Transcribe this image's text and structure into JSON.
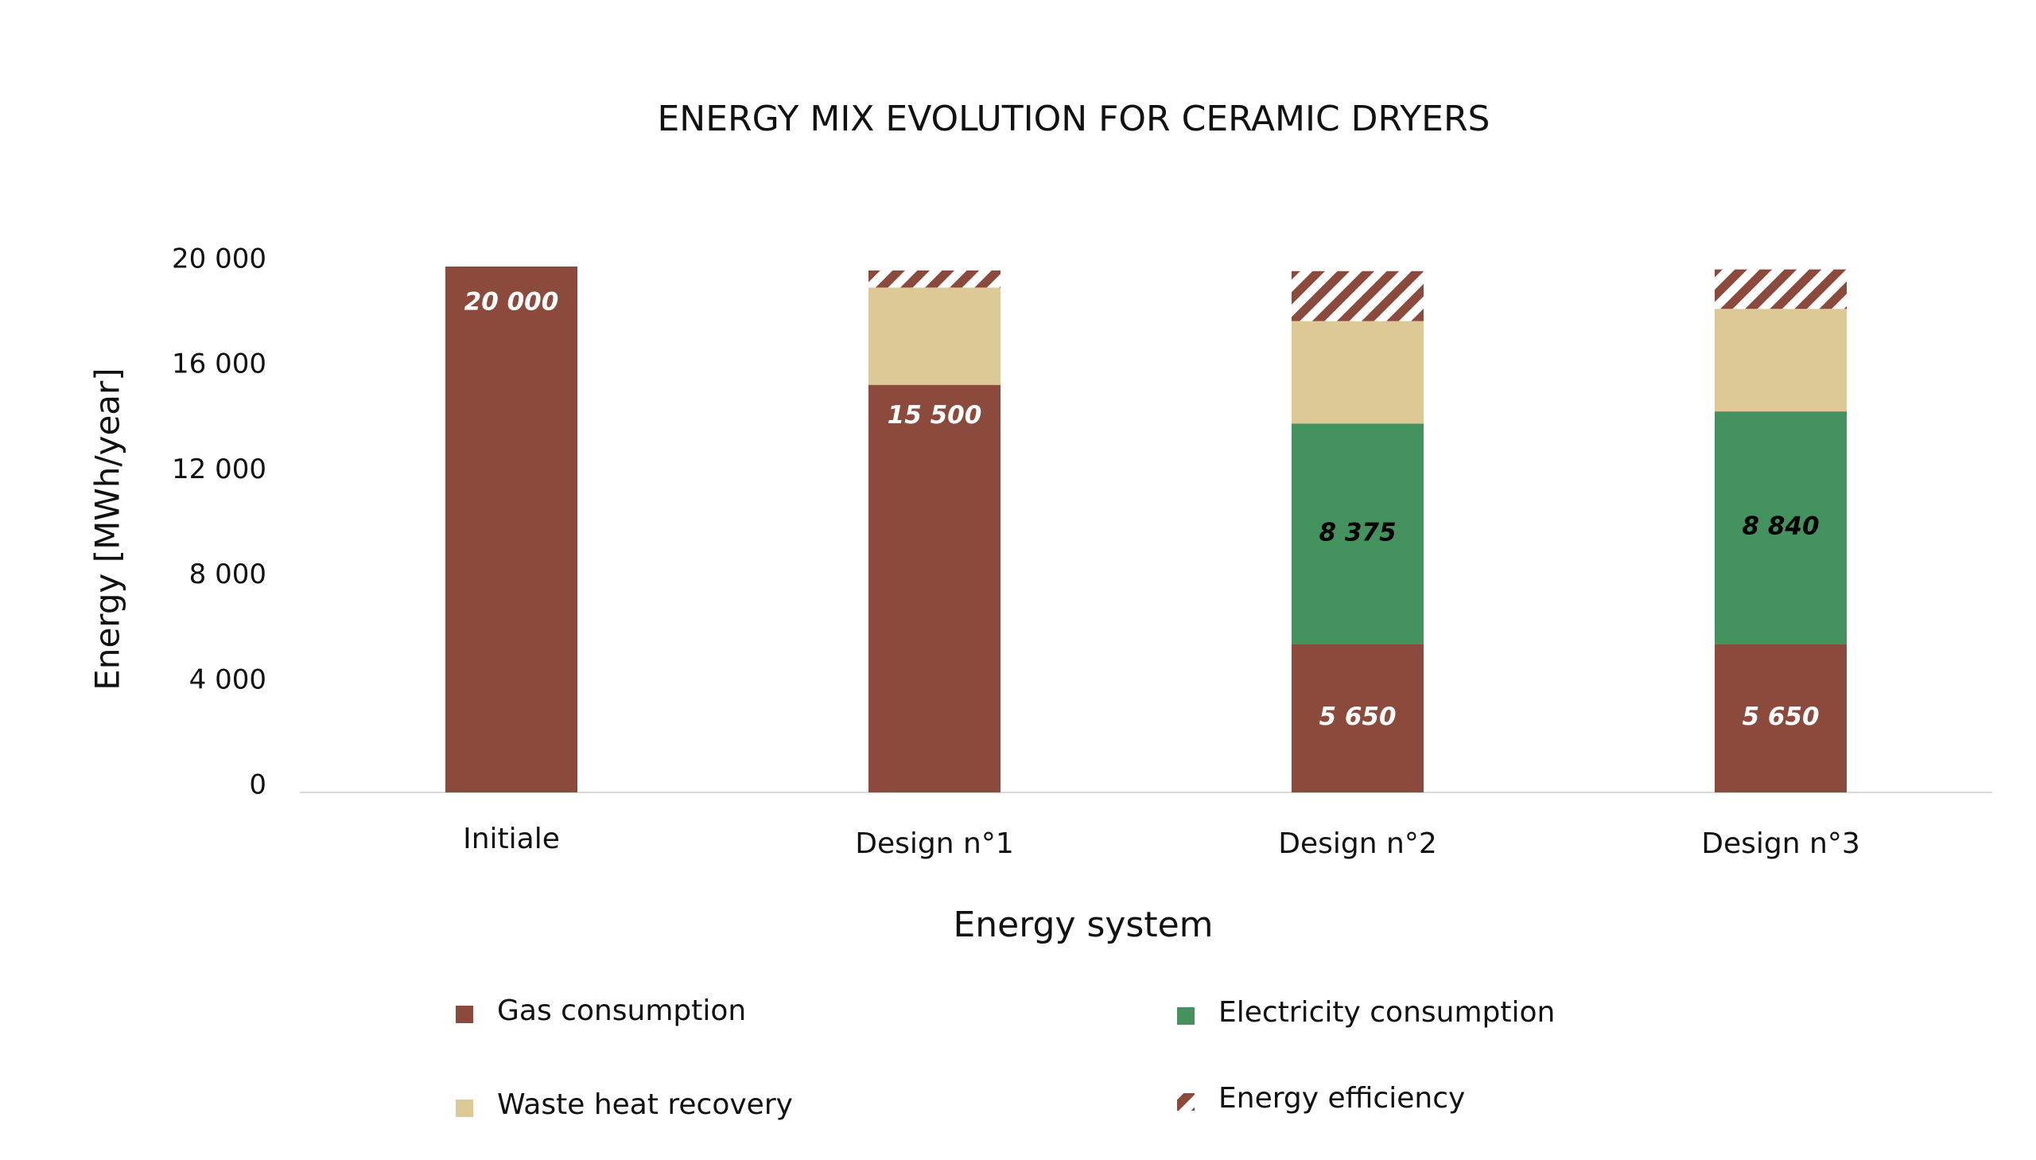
{
  "chart_data": {
    "type": "stacked_bar",
    "title": "ENERGY MIX EVOLUTION FOR CERAMIC DRYERS",
    "x_label": "Energy system",
    "y_label": "Energy  [MWh/year]",
    "categories": [
      "Initiale",
      "Design n°1",
      "Design n°2",
      "Design n°3"
    ],
    "series": [
      {
        "name": "Gas consumption",
        "color": "#8b4a3c",
        "label_color": "#ffffff",
        "values": [
          20000,
          15500,
          5650,
          5650
        ],
        "value_labels": [
          "20 000",
          "15 500",
          "5 650",
          "5 650"
        ]
      },
      {
        "name": "Electricity consumption",
        "color": "#44935f",
        "label_color": "#000000",
        "values": [
          0,
          0,
          8375,
          8840
        ],
        "value_labels": [
          null,
          null,
          "8 375",
          "8 840"
        ]
      },
      {
        "name": "Waste heat recovery",
        "color": "#dcc995",
        "values": [
          0,
          3700,
          3900,
          3900
        ]
      },
      {
        "name": "Energy efficiency",
        "color": "#8b4a3c",
        "hatch": true,
        "values": [
          0,
          650,
          1900,
          1500
        ]
      }
    ],
    "ylim": [
      0,
      20000
    ],
    "yticks": [
      0,
      {
        "value": 4000,
        "label": "4 000"
      },
      {
        "value": 8000,
        "label": "8 000"
      },
      {
        "value": 12000,
        "label": "12 000"
      },
      {
        "value": 16000,
        "label": "16 000"
      },
      {
        "value": 20000,
        "label": "20 000"
      }
    ],
    "legend": "bottom"
  }
}
